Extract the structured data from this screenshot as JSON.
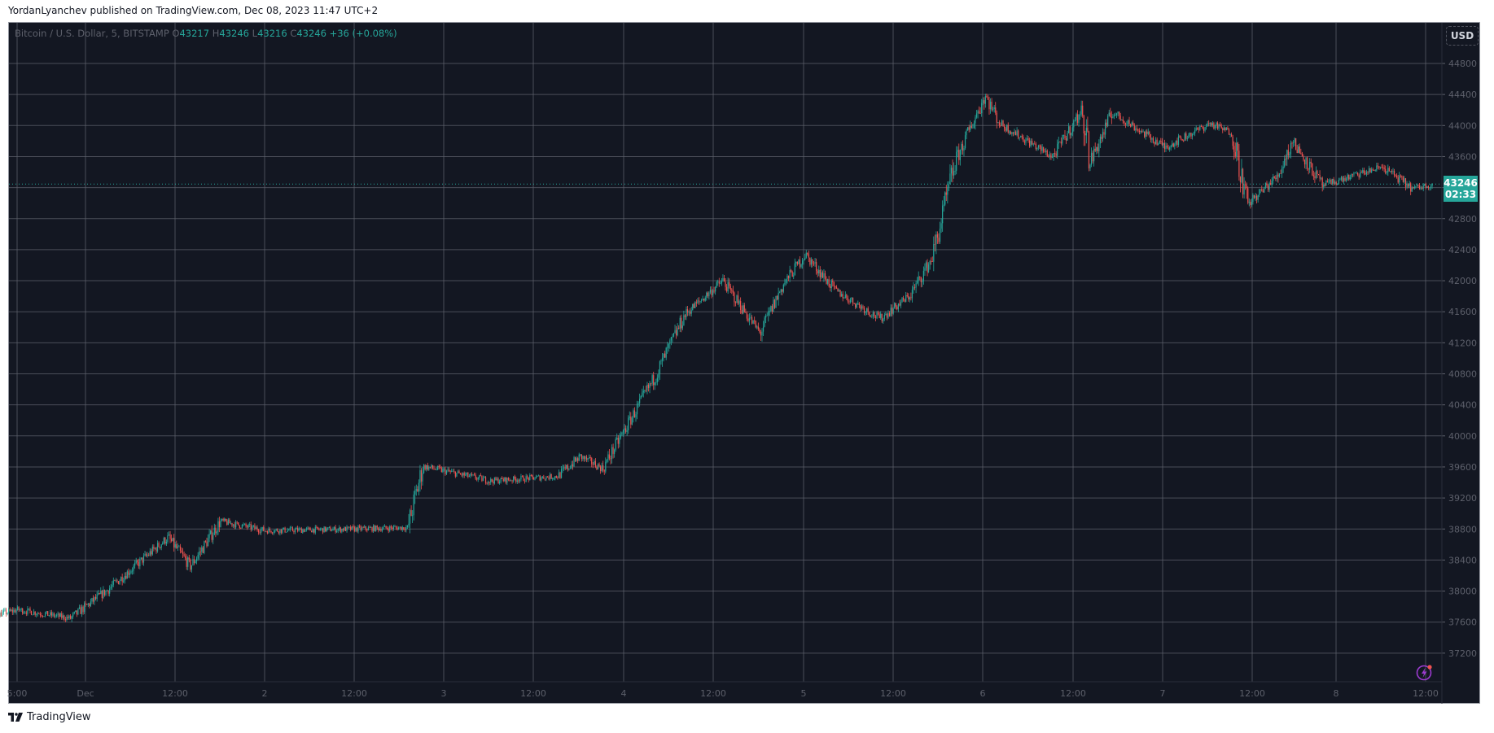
{
  "header": {
    "published": "YordanLyanchev published on TradingView.com, Dec 08, 2023 11:47 UTC+2"
  },
  "legend": {
    "symbol": "Bitcoin / U.S. Dollar, 5, BITSTAMP",
    "o_label": "O",
    "o": "43217",
    "h_label": "H",
    "h": "43246",
    "l_label": "L",
    "l": "43216",
    "c_label": "C",
    "c": "43246",
    "change": "+36 (+0.08%)"
  },
  "currency_button": "USD",
  "last_price": {
    "price": "43246",
    "countdown": "02:33"
  },
  "footer": {
    "brand": "TradingView"
  },
  "colors": {
    "background": "#131722",
    "up": "#26a69a",
    "down": "#ef5350",
    "grid": "#5d606b",
    "axis_text": "#5d606b",
    "last_price": "#26a69a"
  },
  "chart_data": {
    "type": "candlestick",
    "title": "Bitcoin / U.S. Dollar, 5, BITSTAMP",
    "interval": "5",
    "exchange": "BITSTAMP",
    "xlabel": "",
    "ylabel": "USD",
    "ylim": [
      37000,
      45000
    ],
    "y_ticks": [
      44800,
      44400,
      44000,
      43600,
      43200,
      42800,
      42400,
      42000,
      41600,
      41200,
      40800,
      40400,
      40000,
      39600,
      39200,
      38800,
      38400,
      38000,
      37600,
      37200
    ],
    "y_tick_labels_visible": [
      "44800",
      "44400",
      "44000",
      "43600",
      "42800",
      "42400",
      "42000",
      "41600",
      "41200",
      "40800",
      "40400",
      "40000",
      "39600",
      "39200",
      "38800",
      "38400",
      "38000",
      "37600",
      "37200"
    ],
    "x_ticks": [
      "5:00",
      "Dec",
      "12:00",
      "2",
      "12:00",
      "3",
      "12:00",
      "4",
      "12:00",
      "5",
      "12:00",
      "6",
      "12:00",
      "7",
      "12:00",
      "8",
      "12:00"
    ],
    "grid": true,
    "last_price": 43246,
    "price_path": [
      {
        "t": "Nov 30 05:00",
        "p": 37900
      },
      {
        "t": "Nov 30 08:00",
        "p": 37600
      },
      {
        "t": "Nov 30 15:00",
        "p": 37760
      },
      {
        "t": "Nov 30 22:00",
        "p": 37650
      },
      {
        "t": "Dec 1 03:00",
        "p": 38020
      },
      {
        "t": "Dec 1 11:00",
        "p": 38690
      },
      {
        "t": "Dec 1 14:00",
        "p": 38320
      },
      {
        "t": "Dec 1 18:00",
        "p": 38900
      },
      {
        "t": "Dec 2 00:00",
        "p": 38780
      },
      {
        "t": "Dec 2 12:00",
        "p": 38800
      },
      {
        "t": "Dec 2 19:00",
        "p": 38820
      },
      {
        "t": "Dec 2 21:00",
        "p": 39610
      },
      {
        "t": "Dec 3 06:00",
        "p": 39420
      },
      {
        "t": "Dec 3 15:00",
        "p": 39480
      },
      {
        "t": "Dec 3 18:00",
        "p": 39735
      },
      {
        "t": "Dec 3 21:00",
        "p": 39580
      },
      {
        "t": "Dec 4 00:00",
        "p": 40090
      },
      {
        "t": "Dec 4 04:00",
        "p": 40770
      },
      {
        "t": "Dec 4 08:00",
        "p": 41570
      },
      {
        "t": "Dec 4 13:00",
        "p": 42000
      },
      {
        "t": "Dec 4 18:00",
        "p": 41320
      },
      {
        "t": "Dec 4 21:00",
        "p": 41940
      },
      {
        "t": "Dec 5 00:00",
        "p": 42340
      },
      {
        "t": "Dec 5 04:00",
        "p": 41875
      },
      {
        "t": "Dec 5 10:00",
        "p": 41510
      },
      {
        "t": "Dec 5 14:00",
        "p": 41810
      },
      {
        "t": "Dec 5 17:00",
        "p": 42305
      },
      {
        "t": "Dec 5 20:00",
        "p": 43530
      },
      {
        "t": "Dec 6 00:00",
        "p": 44390
      },
      {
        "t": "Dec 6 02:00",
        "p": 44025
      },
      {
        "t": "Dec 6 09:00",
        "p": 43595
      },
      {
        "t": "Dec 6 13:00",
        "p": 44210
      },
      {
        "t": "Dec 6 14:00",
        "p": 43530
      },
      {
        "t": "Dec 6 17:00",
        "p": 44170
      },
      {
        "t": "Dec 7 00:00",
        "p": 43720
      },
      {
        "t": "Dec 7 06:00",
        "p": 44025
      },
      {
        "t": "Dec 7 09:00",
        "p": 43900
      },
      {
        "t": "Dec 7 11:00",
        "p": 42980
      },
      {
        "t": "Dec 7 15:00",
        "p": 43350
      },
      {
        "t": "Dec 7 17:00",
        "p": 43805
      },
      {
        "t": "Dec 7 21:00",
        "p": 43225
      },
      {
        "t": "Dec 8 05:00",
        "p": 43470
      },
      {
        "t": "Dec 8 09:00",
        "p": 43185
      },
      {
        "t": "Dec 8 11:45",
        "p": 43246
      }
    ]
  }
}
